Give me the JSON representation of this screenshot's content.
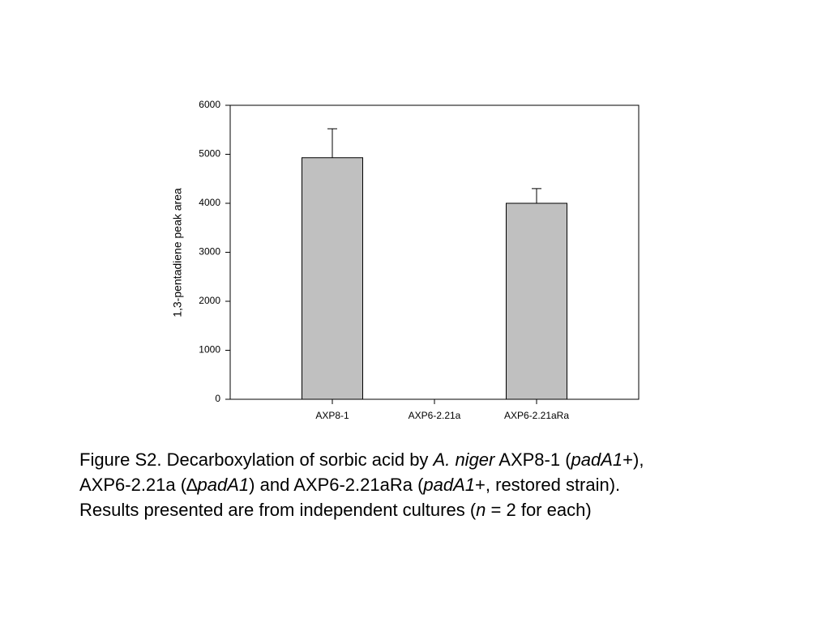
{
  "chart_data": {
    "type": "bar",
    "y_label": "1,3-pentadiene peak area",
    "categories": [
      "AXP8-1",
      "AXP6-2.21a",
      "AXP6-2.21aRa"
    ],
    "values": [
      4930,
      0,
      4000
    ],
    "errors": [
      590,
      null,
      300
    ],
    "color": "#c0c0c0",
    "ylim": [
      0,
      6000
    ],
    "yticks": [
      0,
      1000,
      2000,
      3000,
      4000,
      5000,
      6000
    ],
    "grid": false
  },
  "caption": [
    [
      {
        "text": "Figure S2. Decarboxylation of sorbic acid by "
      },
      {
        "text": "A. niger",
        "italic": true
      },
      {
        "text": " AXP8-1 ("
      },
      {
        "text": "padA1",
        "italic": true
      },
      {
        "text": "+),"
      }
    ],
    [
      {
        "text": "AXP6-2.21a (∆"
      },
      {
        "text": "padA1",
        "italic": true
      },
      {
        "text": ") and AXP6-2.21aRa ("
      },
      {
        "text": "padA1",
        "italic": true
      },
      {
        "text": "+, restored strain)."
      }
    ],
    [
      {
        "text": "Results presented are from independent cultures ("
      },
      {
        "text": "n",
        "italic": true
      },
      {
        "text": " = 2 for each)"
      }
    ]
  ]
}
